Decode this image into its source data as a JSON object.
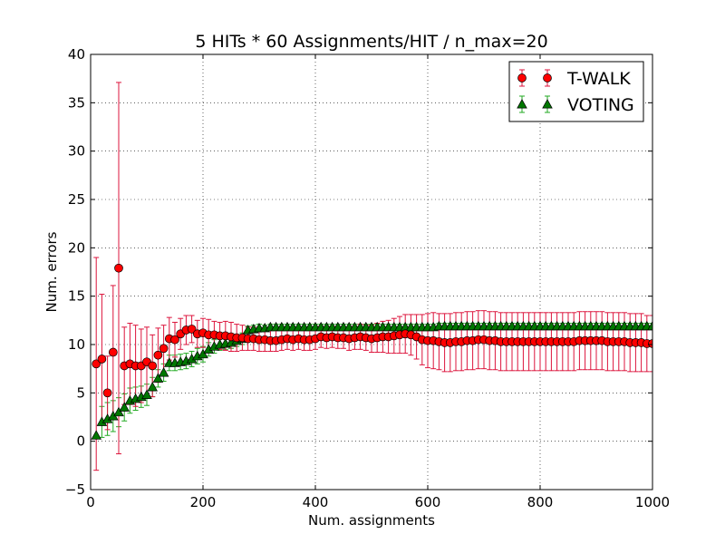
{
  "chart_data": {
    "type": "scatter",
    "title": "5 HITs * 60 Assignments/HIT / n_max=20",
    "xlabel": "Num. assignments",
    "ylabel": "Num. errors",
    "xlim": [
      0,
      1000
    ],
    "ylim": [
      -5,
      40
    ],
    "xticks": [
      "0",
      "200",
      "400",
      "600",
      "800",
      "1000"
    ],
    "yticks": [
      "−5",
      "0",
      "5",
      "10",
      "15",
      "20",
      "25",
      "30",
      "35",
      "40"
    ],
    "grid": true,
    "legend_position": "top-right",
    "series": [
      {
        "name": "T-WALK",
        "marker": "circle",
        "color": "#ff0000",
        "err_color": "#dc143c",
        "x": [
          10,
          20,
          30,
          40,
          50,
          60,
          70,
          80,
          90,
          100,
          110,
          120,
          130,
          140,
          150,
          160,
          170,
          180,
          190,
          200,
          210,
          220,
          230,
          240,
          250,
          260,
          270,
          280,
          290,
          300,
          310,
          320,
          330,
          340,
          350,
          360,
          370,
          380,
          390,
          400,
          410,
          420,
          430,
          440,
          450,
          460,
          470,
          480,
          490,
          500,
          510,
          520,
          530,
          540,
          550,
          560,
          570,
          580,
          590,
          600,
          610,
          620,
          630,
          640,
          650,
          660,
          670,
          680,
          690,
          700,
          710,
          720,
          730,
          740,
          750,
          760,
          770,
          780,
          790,
          800,
          810,
          820,
          830,
          840,
          850,
          860,
          870,
          880,
          890,
          900,
          910,
          920,
          930,
          940,
          950,
          960,
          970,
          980,
          990,
          1000
        ],
        "y": [
          8.0,
          8.5,
          5.0,
          9.2,
          17.9,
          7.8,
          8.0,
          7.8,
          7.8,
          8.2,
          7.8,
          8.9,
          9.6,
          10.6,
          10.5,
          11.1,
          11.5,
          11.6,
          11.1,
          11.2,
          11.0,
          11.0,
          10.9,
          10.9,
          10.8,
          10.7,
          10.7,
          10.6,
          10.6,
          10.5,
          10.5,
          10.4,
          10.4,
          10.5,
          10.6,
          10.5,
          10.6,
          10.5,
          10.5,
          10.6,
          10.8,
          10.7,
          10.8,
          10.7,
          10.7,
          10.6,
          10.7,
          10.8,
          10.7,
          10.6,
          10.7,
          10.8,
          10.8,
          10.9,
          11.0,
          11.1,
          11.0,
          10.8,
          10.5,
          10.4,
          10.4,
          10.3,
          10.2,
          10.2,
          10.3,
          10.3,
          10.4,
          10.4,
          10.5,
          10.5,
          10.4,
          10.4,
          10.3,
          10.3,
          10.3,
          10.3,
          10.3,
          10.3,
          10.3,
          10.3,
          10.3,
          10.3,
          10.3,
          10.3,
          10.3,
          10.3,
          10.4,
          10.4,
          10.4,
          10.4,
          10.4,
          10.3,
          10.3,
          10.3,
          10.3,
          10.2,
          10.2,
          10.2,
          10.1,
          10.1
        ],
        "err": [
          11.0,
          6.7,
          3.8,
          6.9,
          19.2,
          4.0,
          4.2,
          4.2,
          3.8,
          3.6,
          3.2,
          2.8,
          2.4,
          2.2,
          1.8,
          1.6,
          1.5,
          1.4,
          1.4,
          1.5,
          1.6,
          1.4,
          1.4,
          1.5,
          1.5,
          1.4,
          1.3,
          1.2,
          1.2,
          1.2,
          1.2,
          1.1,
          1.1,
          1.1,
          1.1,
          1.1,
          1.1,
          1.1,
          1.1,
          1.1,
          1.1,
          1.1,
          1.1,
          1.1,
          1.1,
          1.2,
          1.2,
          1.3,
          1.3,
          1.4,
          1.5,
          1.6,
          1.7,
          1.8,
          1.9,
          2.0,
          2.1,
          2.3,
          2.6,
          2.8,
          2.9,
          2.9,
          3.0,
          3.0,
          3.0,
          3.0,
          3.0,
          3.0,
          3.0,
          3.0,
          3.0,
          3.0,
          3.0,
          3.0,
          3.0,
          3.0,
          3.0,
          3.0,
          3.0,
          3.0,
          3.0,
          3.0,
          3.0,
          3.0,
          3.0,
          3.0,
          3.0,
          3.0,
          3.0,
          3.0,
          3.0,
          3.0,
          3.0,
          3.0,
          3.0,
          3.0,
          3.0,
          3.0,
          2.9,
          2.9
        ]
      },
      {
        "name": "VOTING",
        "marker": "triangle",
        "color": "#007700",
        "err_color": "#22aa22",
        "x": [
          10,
          20,
          30,
          40,
          50,
          60,
          70,
          80,
          90,
          100,
          110,
          120,
          130,
          140,
          150,
          160,
          170,
          180,
          190,
          200,
          210,
          220,
          230,
          240,
          250,
          260,
          270,
          280,
          290,
          300,
          310,
          320,
          330,
          340,
          350,
          360,
          370,
          380,
          390,
          400,
          410,
          420,
          430,
          440,
          450,
          460,
          470,
          480,
          490,
          500,
          510,
          520,
          530,
          540,
          550,
          560,
          570,
          580,
          590,
          600,
          610,
          620,
          630,
          640,
          650,
          660,
          670,
          680,
          690,
          700,
          710,
          720,
          730,
          740,
          750,
          760,
          770,
          780,
          790,
          800,
          810,
          820,
          830,
          840,
          850,
          860,
          870,
          880,
          890,
          900,
          910,
          920,
          930,
          940,
          950,
          960,
          970,
          980,
          990,
          1000
        ],
        "y": [
          0.6,
          2.0,
          2.3,
          2.6,
          3.0,
          3.5,
          4.2,
          4.4,
          4.6,
          4.8,
          5.6,
          6.5,
          7.1,
          8.1,
          8.1,
          8.2,
          8.3,
          8.5,
          8.8,
          9.0,
          9.5,
          9.8,
          10.0,
          10.1,
          10.2,
          10.4,
          10.6,
          11.5,
          11.6,
          11.7,
          11.7,
          11.8,
          11.8,
          11.8,
          11.8,
          11.8,
          11.8,
          11.8,
          11.8,
          11.8,
          11.8,
          11.8,
          11.8,
          11.8,
          11.8,
          11.8,
          11.8,
          11.8,
          11.8,
          11.8,
          11.8,
          11.8,
          11.8,
          11.8,
          11.8,
          11.8,
          11.8,
          11.8,
          11.8,
          11.8,
          11.8,
          11.9,
          11.9,
          11.9,
          11.9,
          11.9,
          11.9,
          11.9,
          11.9,
          11.9,
          11.9,
          11.9,
          11.9,
          11.9,
          11.9,
          11.9,
          11.9,
          11.9,
          11.9,
          11.9,
          11.9,
          11.9,
          11.9,
          11.9,
          11.9,
          11.9,
          11.9,
          11.9,
          11.9,
          11.9,
          11.9,
          11.9,
          11.9,
          11.9,
          11.9,
          11.9,
          11.9,
          11.9,
          11.9,
          11.9
        ],
        "err": [
          0.0,
          1.6,
          1.7,
          1.6,
          1.5,
          1.4,
          1.3,
          1.2,
          1.1,
          1.1,
          1.0,
          0.9,
          0.9,
          0.8,
          0.8,
          0.8,
          0.8,
          0.8,
          0.8,
          0.8,
          0.7,
          0.7,
          0.6,
          0.6,
          0.6,
          0.6,
          0.6,
          0.4,
          0.4,
          0.4,
          0.3,
          0.3,
          0.3,
          0.3,
          0.3,
          0.3,
          0.3,
          0.3,
          0.3,
          0.3,
          0.3,
          0.3,
          0.3,
          0.3,
          0.3,
          0.3,
          0.3,
          0.3,
          0.3,
          0.3,
          0.3,
          0.3,
          0.3,
          0.3,
          0.3,
          0.3,
          0.3,
          0.3,
          0.3,
          0.3,
          0.3,
          0.3,
          0.3,
          0.3,
          0.3,
          0.3,
          0.3,
          0.3,
          0.3,
          0.3,
          0.3,
          0.3,
          0.3,
          0.3,
          0.3,
          0.3,
          0.3,
          0.3,
          0.3,
          0.3,
          0.3,
          0.3,
          0.3,
          0.3,
          0.3,
          0.3,
          0.3,
          0.3,
          0.3,
          0.3,
          0.3,
          0.3,
          0.3,
          0.3,
          0.3,
          0.3,
          0.3,
          0.3,
          0.3,
          0.3
        ]
      }
    ]
  }
}
